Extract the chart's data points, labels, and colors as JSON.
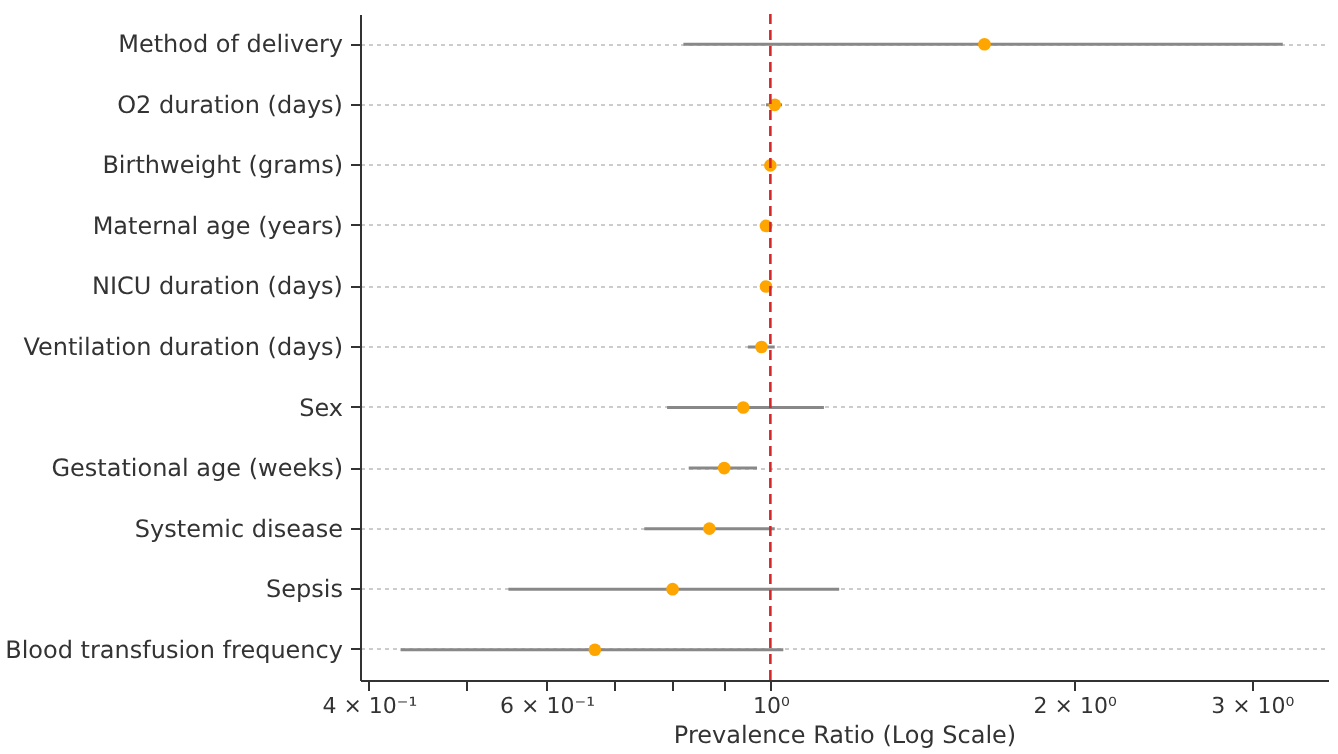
{
  "chart_data": {
    "type": "scatter",
    "orientation": "horizontal",
    "xlabel": "Prevalence Ratio (Log Scale)",
    "log": "x",
    "grid": "y",
    "marker": "circle",
    "categories": [
      "Method of delivery",
      "O2 duration (days)",
      "Birthweight (grams)",
      "Maternal age (years)",
      "NICU duration (days)",
      "Ventilation duration (days)",
      "Sex",
      "Gestational age (weeks)",
      "Systemic disease",
      "Sepsis",
      "Blood transfusion frequency"
    ],
    "series": [
      {
        "color": "#ffa500",
        "values": [
          1.63,
          1.01,
          1.0,
          0.99,
          0.99,
          0.98,
          0.94,
          0.9,
          0.87,
          0.8,
          0.67
        ],
        "errors": [
          [
            0.82,
            3.22
          ],
          [
            0.99,
            1.027
          ],
          null,
          null,
          null,
          [
            0.95,
            1.01
          ],
          [
            0.79,
            1.13
          ],
          [
            0.83,
            0.97
          ],
          [
            0.75,
            1.01
          ],
          [
            0.55,
            1.17
          ],
          [
            0.43,
            1.03
          ]
        ]
      }
    ],
    "xlim": [
      0.392,
      3.57
    ],
    "xticks": [
      {
        "value": 0.4,
        "label": "4 × 10⁻¹"
      },
      {
        "value": 0.5,
        "label": null
      },
      {
        "value": 0.6,
        "label": "6 × 10⁻¹"
      },
      {
        "value": 0.7,
        "label": null
      },
      {
        "value": 0.8,
        "label": null
      },
      {
        "value": 0.9,
        "label": null
      },
      {
        "value": 1,
        "label": "10⁰"
      },
      {
        "value": 2,
        "label": "2 × 10⁰"
      },
      {
        "value": 3,
        "label": "3 × 10⁰"
      }
    ],
    "ref_lines": [
      {
        "axis": "x",
        "value": 1,
        "color": "#d62728",
        "line_style": "dashed"
      }
    ]
  }
}
